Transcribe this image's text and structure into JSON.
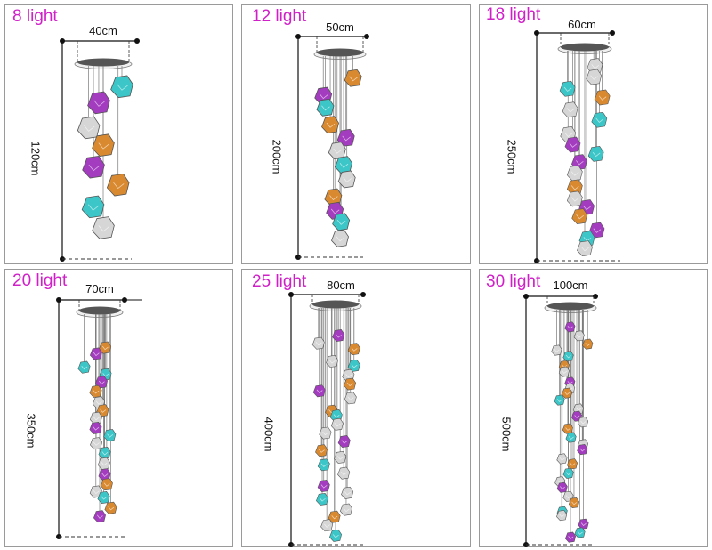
{
  "models": [
    {
      "title": "8 light",
      "width": "40cm",
      "height": "120cm",
      "shades": [
        "teal",
        "purple",
        "white",
        "orange",
        "purple",
        "orange",
        "teal",
        "white"
      ]
    },
    {
      "title": "12 light",
      "width": "50cm",
      "height": "200cm",
      "shades": [
        "orange",
        "purple",
        "teal",
        "orange",
        "purple",
        "white",
        "teal",
        "white",
        "orange",
        "purple",
        "teal",
        "white"
      ]
    },
    {
      "title": "18 light",
      "width": "60cm",
      "height": "250cm",
      "shades": [
        "white",
        "white",
        "teal",
        "orange",
        "white",
        "teal",
        "white",
        "purple",
        "teal",
        "purple",
        "white",
        "orange",
        "white",
        "purple",
        "orange",
        "purple",
        "teal",
        "white"
      ]
    },
    {
      "title": "20 light",
      "width": "70cm",
      "height": "350cm",
      "shades": [
        "orange",
        "purple",
        "teal",
        "teal",
        "purple",
        "orange",
        "white",
        "orange",
        "white",
        "purple",
        "teal",
        "white",
        "teal",
        "white",
        "purple",
        "orange",
        "white",
        "teal",
        "orange",
        "purple"
      ]
    },
    {
      "title": "25 light",
      "width": "80cm",
      "height": "400cm",
      "shades": [
        "purple",
        "white",
        "orange",
        "white",
        "teal",
        "white",
        "orange",
        "purple",
        "white",
        "orange",
        "teal",
        "white",
        "white",
        "purple",
        "orange",
        "white",
        "teal",
        "white",
        "purple",
        "white",
        "teal",
        "white",
        "orange",
        "white",
        "teal"
      ]
    },
    {
      "title": "30 light",
      "width": "100cm",
      "height": "500cm",
      "shades": [
        "purple",
        "white",
        "orange",
        "white",
        "teal",
        "orange",
        "white",
        "purple",
        "white",
        "orange",
        "teal",
        "white",
        "purple",
        "white",
        "orange",
        "teal",
        "white",
        "purple",
        "white",
        "orange",
        "teal",
        "white",
        "purple",
        "white",
        "orange",
        "teal",
        "white",
        "purple",
        "teal",
        "purple"
      ]
    }
  ],
  "colors": {
    "title": "#d020c8",
    "teal": "#3cc6c8",
    "purple": "#a43cc0",
    "orange": "#d98a30",
    "white": "#d6d6d6",
    "canopy": "#555555",
    "frame_border": "#9a9a9a"
  }
}
